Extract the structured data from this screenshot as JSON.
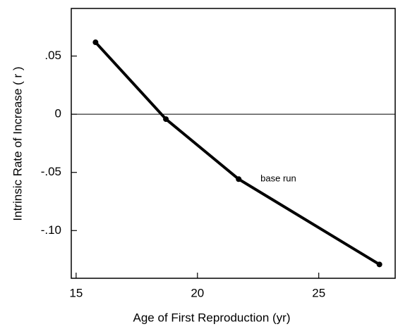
{
  "chart_data": {
    "type": "line",
    "x_label": "Age of First Reproduction (yr)",
    "y_label": "Intrinsic Rate of Increase ( r )",
    "x": [
      15.8,
      18.7,
      21.7,
      27.5
    ],
    "series": [
      {
        "color": "#000000",
        "values": [
          0.0618,
          -0.0042,
          -0.0558,
          -0.1291
        ]
      }
    ],
    "xlim": [
      14.8,
      28.15
    ],
    "xticks": [
      15,
      20,
      25
    ],
    "ylim": [
      -0.141,
      0.0909
    ],
    "yticks": [
      {
        "value": 0.05,
        "label": ".05"
      },
      {
        "value": 0,
        "label": "0"
      },
      {
        "value": -0.05,
        "label": "-.05"
      },
      {
        "value": -0.1,
        "label": "-.10"
      }
    ],
    "hline": 0,
    "annotations": [
      {
        "text": "base run",
        "x": 22.6,
        "y": -0.0558
      }
    ]
  }
}
